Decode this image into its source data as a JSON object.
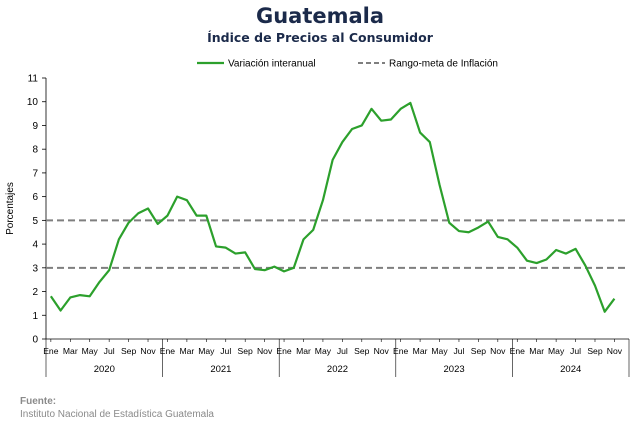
{
  "header": {
    "title": "Guatemala",
    "subtitle": "Índice de Precios al Consumidor"
  },
  "footer": {
    "source_label": "Fuente:",
    "source_text": "Instituto Nacional de Estadística Guatemala"
  },
  "colors": {
    "title": "#1b2a4a",
    "series": "#2ca02c",
    "band": "#7f7f7f",
    "axis": "#000000"
  },
  "chart_data": {
    "type": "line",
    "ylabel": "Porcentajes",
    "ylim": [
      0,
      11
    ],
    "yticks": [
      0,
      1,
      2,
      3,
      4,
      5,
      6,
      7,
      8,
      9,
      10,
      11
    ],
    "grid": false,
    "legend_position": "top",
    "month_tick_labels": [
      "Ene",
      "Mar",
      "May",
      "Jul",
      "Sep",
      "Nov"
    ],
    "years": [
      "2020",
      "2021",
      "2022",
      "2023",
      "2024"
    ],
    "series": [
      {
        "name": "Variación interanual",
        "style": "solid",
        "values": [
          1.8,
          1.2,
          1.75,
          1.85,
          1.8,
          2.4,
          2.9,
          4.2,
          4.9,
          5.3,
          5.5,
          4.85,
          5.2,
          6.0,
          5.85,
          5.2,
          5.2,
          3.9,
          3.85,
          3.6,
          3.65,
          2.95,
          2.9,
          3.05,
          2.85,
          3.0,
          4.2,
          4.6,
          5.85,
          7.55,
          8.3,
          8.85,
          9.0,
          9.7,
          9.2,
          9.25,
          9.7,
          9.95,
          8.7,
          8.3,
          6.5,
          4.9,
          4.55,
          4.5,
          4.7,
          4.95,
          4.3,
          4.2,
          3.85,
          3.3,
          3.2,
          3.35,
          3.75,
          3.6,
          3.8,
          3.1,
          2.25,
          1.15,
          1.7
        ]
      },
      {
        "name": "Rango-meta de Inflación",
        "style": "dashed",
        "bounds": [
          3,
          5
        ]
      }
    ]
  }
}
